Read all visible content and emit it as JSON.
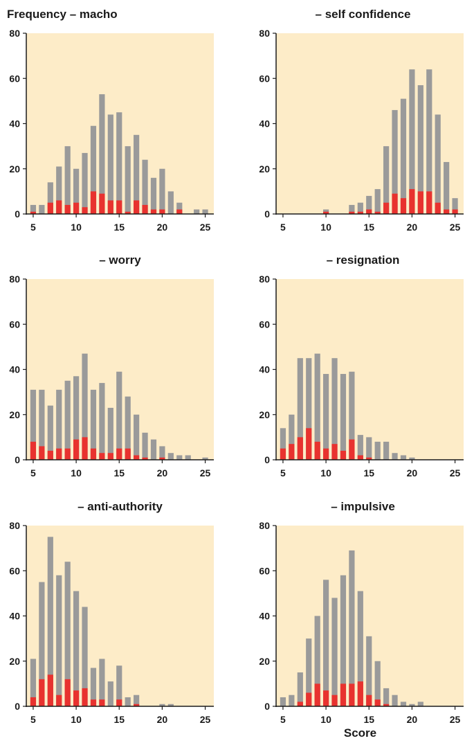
{
  "colors": {
    "plot_background": "#fdecc8",
    "axis": "#1a1a1a",
    "total_bar": "#9a9a9a",
    "subset_bar": "#e8322f"
  },
  "chart_data": [
    {
      "type": "bar",
      "title": "Frequency – macho",
      "xlabel": "",
      "ylabel": "",
      "ylim": [
        0,
        80
      ],
      "yticks": [
        0,
        20,
        40,
        60,
        80
      ],
      "xticks": [
        5,
        10,
        15,
        20,
        25
      ],
      "x": [
        5,
        6,
        7,
        8,
        9,
        10,
        11,
        12,
        13,
        14,
        15,
        16,
        17,
        18,
        19,
        20,
        21,
        22,
        23,
        24,
        25
      ],
      "series": [
        {
          "values": [
            4,
            4,
            14,
            21,
            30,
            20,
            27,
            39,
            53,
            44,
            45,
            30,
            35,
            24,
            16,
            20,
            10,
            5,
            0,
            2,
            2
          ]
        },
        {
          "values": [
            1,
            0,
            5,
            6,
            4,
            5,
            3,
            10,
            9,
            6,
            6,
            1,
            6,
            4,
            2,
            2,
            0,
            2,
            0,
            0,
            0
          ]
        }
      ]
    },
    {
      "type": "bar",
      "title": "– self confidence",
      "xlabel": "",
      "ylabel": "",
      "ylim": [
        0,
        80
      ],
      "yticks": [
        0,
        20,
        40,
        60,
        80
      ],
      "xticks": [
        5,
        10,
        15,
        20,
        25
      ],
      "x": [
        5,
        6,
        7,
        8,
        9,
        10,
        11,
        12,
        13,
        14,
        15,
        16,
        17,
        18,
        19,
        20,
        21,
        22,
        23,
        24,
        25
      ],
      "series": [
        {
          "values": [
            0,
            0,
            0,
            0,
            0,
            2,
            0,
            0,
            4,
            5,
            8,
            11,
            30,
            46,
            51,
            64,
            57,
            64,
            44,
            23,
            7
          ]
        },
        {
          "values": [
            0,
            0,
            0,
            0,
            0,
            1,
            0,
            0,
            1,
            1,
            2,
            1,
            5,
            9,
            7,
            11,
            10,
            10,
            5,
            2,
            2
          ]
        }
      ]
    },
    {
      "type": "bar",
      "title": "– worry",
      "xlabel": "",
      "ylabel": "",
      "ylim": [
        0,
        80
      ],
      "yticks": [
        0,
        20,
        40,
        60,
        80
      ],
      "xticks": [
        5,
        10,
        15,
        20,
        25
      ],
      "x": [
        5,
        6,
        7,
        8,
        9,
        10,
        11,
        12,
        13,
        14,
        15,
        16,
        17,
        18,
        19,
        20,
        21,
        22,
        23,
        24,
        25
      ],
      "series": [
        {
          "values": [
            31,
            31,
            24,
            31,
            35,
            37,
            47,
            31,
            34,
            23,
            39,
            28,
            20,
            12,
            9,
            6,
            3,
            2,
            2,
            0,
            1
          ]
        },
        {
          "values": [
            8,
            6,
            4,
            5,
            5,
            9,
            10,
            5,
            3,
            3,
            5,
            5,
            2,
            1,
            0,
            1,
            0,
            0,
            0,
            0,
            0
          ]
        }
      ]
    },
    {
      "type": "bar",
      "title": "– resignation",
      "xlabel": "",
      "ylabel": "",
      "ylim": [
        0,
        80
      ],
      "yticks": [
        0,
        20,
        40,
        60,
        80
      ],
      "xticks": [
        5,
        10,
        15,
        20,
        25
      ],
      "x": [
        5,
        6,
        7,
        8,
        9,
        10,
        11,
        12,
        13,
        14,
        15,
        16,
        17,
        18,
        19,
        20,
        21,
        22,
        23,
        24,
        25
      ],
      "series": [
        {
          "values": [
            14,
            20,
            45,
            45,
            47,
            38,
            45,
            38,
            39,
            11,
            10,
            8,
            8,
            3,
            2,
            1,
            0,
            0,
            0,
            0,
            0
          ]
        },
        {
          "values": [
            5,
            7,
            10,
            14,
            8,
            5,
            7,
            4,
            9,
            2,
            1,
            0,
            0,
            0,
            0,
            0,
            0,
            0,
            0,
            0,
            0
          ]
        }
      ]
    },
    {
      "type": "bar",
      "title": "– anti-authority",
      "xlabel": "",
      "ylabel": "",
      "ylim": [
        0,
        80
      ],
      "yticks": [
        0,
        20,
        40,
        60,
        80
      ],
      "xticks": [
        5,
        10,
        15,
        20,
        25
      ],
      "x": [
        5,
        6,
        7,
        8,
        9,
        10,
        11,
        12,
        13,
        14,
        15,
        16,
        17,
        18,
        19,
        20,
        21,
        22,
        23,
        24,
        25
      ],
      "series": [
        {
          "values": [
            21,
            55,
            75,
            58,
            64,
            51,
            44,
            17,
            21,
            11,
            18,
            4,
            5,
            0,
            0,
            1,
            1,
            0,
            0,
            0,
            0
          ]
        },
        {
          "values": [
            4,
            12,
            14,
            5,
            12,
            7,
            8,
            3,
            3,
            0,
            3,
            0,
            1,
            0,
            0,
            0,
            0,
            0,
            0,
            0,
            0
          ]
        }
      ]
    },
    {
      "type": "bar",
      "title": "– impulsive",
      "xlabel": "Score",
      "ylabel": "",
      "ylim": [
        0,
        80
      ],
      "yticks": [
        0,
        20,
        40,
        60,
        80
      ],
      "xticks": [
        5,
        10,
        15,
        20,
        25
      ],
      "x": [
        5,
        6,
        7,
        8,
        9,
        10,
        11,
        12,
        13,
        14,
        15,
        16,
        17,
        18,
        19,
        20,
        21,
        22,
        23,
        24,
        25
      ],
      "series": [
        {
          "values": [
            4,
            5,
            15,
            30,
            40,
            56,
            48,
            58,
            69,
            51,
            31,
            20,
            8,
            5,
            2,
            1,
            2,
            0,
            0,
            0,
            0
          ]
        },
        {
          "values": [
            0,
            0,
            2,
            6,
            10,
            7,
            5,
            10,
            10,
            11,
            5,
            3,
            1,
            0,
            0,
            0,
            0,
            0,
            0,
            0,
            0
          ]
        }
      ]
    }
  ]
}
